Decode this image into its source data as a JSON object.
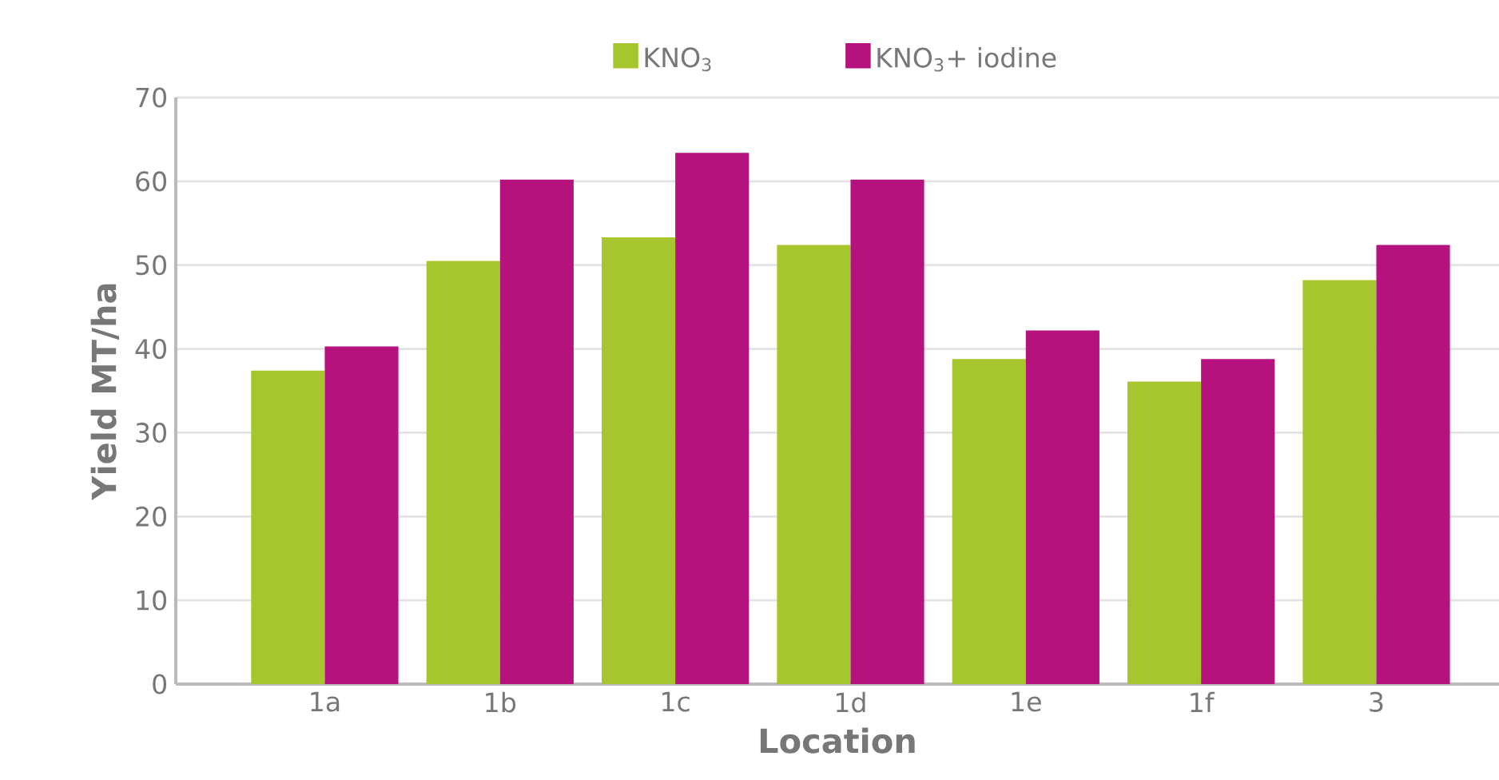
{
  "chart_data": {
    "type": "bar",
    "xlabel": "Location",
    "ylabel": "Yield MT/ha",
    "categories": [
      "1a",
      "1b",
      "1c",
      "1d",
      "1e",
      "1f",
      "3"
    ],
    "series": [
      {
        "name": "KNO$_{3}$",
        "color": "#a7c52d",
        "values": [
          37.4,
          50.5,
          53.3,
          52.4,
          38.8,
          36.1,
          48.2
        ]
      },
      {
        "name": "KNO$_{3}$+ iodine",
        "color": "#b5127d",
        "values": [
          40.3,
          60.2,
          63.4,
          60.2,
          42.2,
          38.8,
          52.4
        ]
      }
    ],
    "ylim": [
      0,
      70
    ],
    "yticks": [
      0,
      10,
      20,
      30,
      40,
      50,
      60,
      70
    ],
    "grid": "y",
    "legend": "top"
  }
}
